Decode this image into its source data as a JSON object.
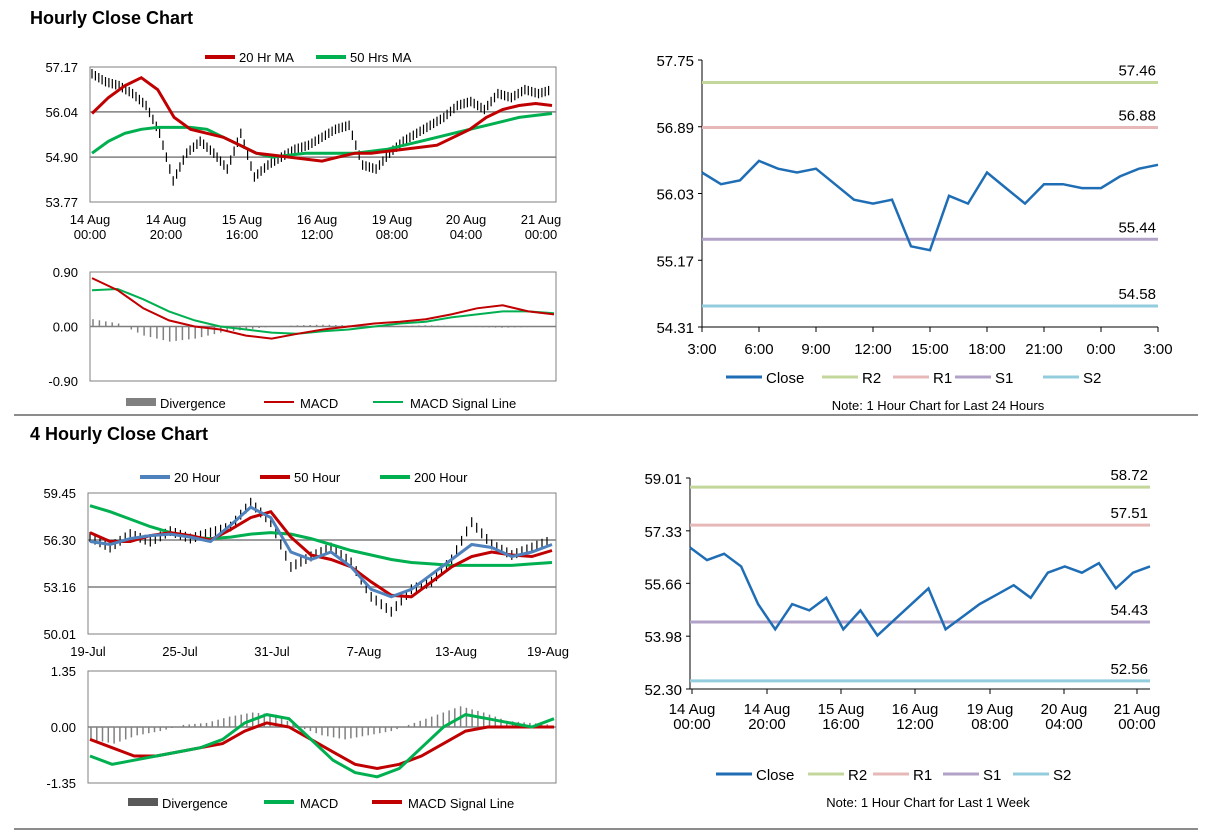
{
  "section1": {
    "title": "Hourly Close Chart"
  },
  "section2": {
    "title": "4 Hourly Close Chart"
  },
  "colors": {
    "ma_red": "#c00000",
    "ma_green": "#00b050",
    "ma_blue": "#4f81bd",
    "close": "#1f6eb5",
    "r2": "#c4d79b",
    "r1": "#e6b9b8",
    "s1": "#b2a2c7",
    "s2": "#93cddd",
    "divergence": "#808080",
    "gridline": "#7f7f7f"
  },
  "chart_data": [
    {
      "id": "hourly-price",
      "type": "line",
      "title": "",
      "tick_labels": [
        "14 Aug\n00:00",
        "14 Aug\n20:00",
        "15 Aug\n16:00",
        "16 Aug\n12:00",
        "19 Aug\n08:00",
        "20 Aug\n04:00",
        "21 Aug\n00:00"
      ],
      "y_ticks": [
        "57.17",
        "56.04",
        "54.90",
        "53.77"
      ],
      "ylim": [
        53.77,
        57.17
      ],
      "series": [
        {
          "name": "20 Hr MA",
          "values": [
            56.0,
            56.4,
            56.7,
            56.9,
            56.6,
            55.9,
            55.6,
            55.5,
            55.4,
            55.2,
            55.0,
            54.95,
            54.9,
            54.85,
            54.8,
            54.9,
            55.0,
            55.0,
            55.05,
            55.1,
            55.15,
            55.2,
            55.4,
            55.6,
            55.9,
            56.1,
            56.2,
            56.25,
            56.2
          ]
        },
        {
          "name": "50 Hrs MA",
          "values": [
            55.0,
            55.3,
            55.5,
            55.6,
            55.65,
            55.65,
            55.65,
            55.6,
            55.4,
            55.2,
            55.0,
            54.9,
            54.95,
            55.0,
            55.0,
            55.0,
            55.0,
            55.05,
            55.1,
            55.2,
            55.3,
            55.4,
            55.5,
            55.6,
            55.7,
            55.8,
            55.9,
            55.95,
            56.0
          ]
        }
      ],
      "close_values": [
        57.0,
        56.8,
        56.7,
        56.5,
        56.2,
        55.5,
        54.3,
        55.0,
        55.3,
        55.0,
        54.6,
        55.5,
        54.4,
        54.7,
        54.9,
        55.1,
        55.2,
        55.4,
        55.6,
        55.7,
        54.7,
        54.6,
        55.0,
        55.3,
        55.5,
        55.7,
        55.9,
        56.2,
        56.3,
        56.1,
        56.5,
        56.4,
        56.6,
        56.5,
        56.6
      ]
    },
    {
      "id": "hourly-macd",
      "type": "line",
      "y_ticks": [
        "0.90",
        "0.00",
        "-0.90"
      ],
      "ylim": [
        -0.9,
        0.9
      ],
      "series": [
        {
          "name": "Divergence",
          "values": [
            0.12,
            0.05,
            -0.15,
            -0.25,
            -0.2,
            -0.1,
            -0.05,
            0.0,
            0.02,
            0.03,
            0.02,
            0.0,
            0.01,
            0.02,
            0.01,
            -0.01,
            -0.02,
            -0.01,
            0.0
          ]
        },
        {
          "name": "MACD",
          "values": [
            0.8,
            0.6,
            0.3,
            0.1,
            0.0,
            -0.05,
            -0.15,
            -0.2,
            -0.12,
            -0.05,
            0.0,
            0.05,
            0.08,
            0.12,
            0.2,
            0.3,
            0.35,
            0.25,
            0.2
          ]
        },
        {
          "name": "MACD Signal Line",
          "values": [
            0.6,
            0.62,
            0.45,
            0.25,
            0.1,
            0.0,
            -0.05,
            -0.1,
            -0.12,
            -0.08,
            -0.05,
            0.0,
            0.05,
            0.08,
            0.15,
            0.2,
            0.25,
            0.25,
            0.22
          ]
        }
      ]
    },
    {
      "id": "hourly-levels",
      "type": "line",
      "x_labels": [
        "3:00",
        "6:00",
        "9:00",
        "12:00",
        "15:00",
        "18:00",
        "21:00",
        "0:00",
        "3:00"
      ],
      "y_ticks": [
        "57.75",
        "56.89",
        "56.03",
        "55.17",
        "54.31"
      ],
      "ylim": [
        54.31,
        57.75
      ],
      "series": [
        {
          "name": "Close",
          "values": [
            56.3,
            56.15,
            56.2,
            56.45,
            56.35,
            56.3,
            56.35,
            56.15,
            55.95,
            55.9,
            55.95,
            55.35,
            55.3,
            56.0,
            55.9,
            56.3,
            56.1,
            55.9,
            56.15,
            56.15,
            56.1,
            56.1,
            56.25,
            56.35,
            56.4
          ]
        },
        {
          "name": "R2",
          "level": 57.46,
          "label": "57.46"
        },
        {
          "name": "R1",
          "level": 56.88,
          "label": "56.88"
        },
        {
          "name": "S1",
          "level": 55.44,
          "label": "55.44"
        },
        {
          "name": "S2",
          "level": 54.58,
          "label": "54.58"
        }
      ],
      "note": "Note: 1 Hour Chart for Last 24 Hours"
    },
    {
      "id": "four-hourly-price",
      "type": "line",
      "x_labels": [
        "19-Jul",
        "25-Jul",
        "31-Jul",
        "7-Aug",
        "13-Aug",
        "19-Aug"
      ],
      "y_ticks": [
        "59.45",
        "56.30",
        "53.16",
        "50.01"
      ],
      "ylim": [
        50.01,
        59.45
      ],
      "series": [
        {
          "name": "20 Hour",
          "values": [
            56.2,
            56.0,
            56.4,
            56.6,
            56.7,
            56.5,
            56.2,
            57.3,
            58.5,
            57.8,
            55.5,
            55.0,
            55.5,
            54.5,
            53.0,
            52.5,
            53.0,
            54.0,
            55.0,
            56.0,
            55.8,
            55.2,
            55.5,
            56.0
          ]
        },
        {
          "name": "50 Hour",
          "values": [
            56.8,
            56.2,
            56.2,
            56.6,
            56.8,
            56.6,
            56.3,
            57.0,
            57.8,
            58.2,
            56.5,
            55.3,
            55.0,
            54.5,
            53.5,
            52.6,
            52.5,
            53.5,
            54.5,
            55.2,
            55.5,
            55.3,
            55.2,
            55.6
          ]
        },
        {
          "name": "200 Hour",
          "values": [
            58.6,
            58.2,
            57.7,
            57.2,
            56.8,
            56.5,
            56.4,
            56.5,
            56.7,
            56.8,
            56.7,
            56.4,
            56.0,
            55.6,
            55.3,
            55.0,
            54.8,
            54.7,
            54.6,
            54.6,
            54.6,
            54.6,
            54.7,
            54.8
          ]
        }
      ],
      "close_values": [
        56.5,
        55.8,
        56.7,
        56.2,
        56.9,
        56.4,
        56.8,
        57.2,
        58.8,
        57.5,
        54.5,
        55.2,
        55.8,
        54.8,
        52.5,
        51.5,
        53.0,
        53.5,
        55.0,
        57.5,
        56.0,
        55.3,
        55.8,
        56.3
      ]
    },
    {
      "id": "four-hourly-macd",
      "type": "line",
      "y_ticks": [
        "1.35",
        "0.00",
        "-1.35"
      ],
      "ylim": [
        -1.35,
        1.35
      ],
      "series": [
        {
          "name": "Divergence",
          "values": [
            -0.3,
            -0.4,
            -0.2,
            -0.1,
            0.05,
            0.1,
            0.25,
            0.35,
            0.3,
            0.0,
            -0.2,
            -0.3,
            -0.2,
            -0.1,
            0.1,
            0.3,
            0.5,
            0.35,
            0.15,
            0.1,
            0.05
          ]
        },
        {
          "name": "MACD",
          "values": [
            -0.7,
            -0.9,
            -0.8,
            -0.7,
            -0.6,
            -0.5,
            -0.3,
            0.1,
            0.3,
            0.2,
            -0.3,
            -0.8,
            -1.1,
            -1.2,
            -1.0,
            -0.5,
            0.0,
            0.3,
            0.2,
            0.1,
            0.0,
            0.2
          ]
        },
        {
          "name": "MACD Signal Line",
          "values": [
            -0.3,
            -0.5,
            -0.7,
            -0.7,
            -0.6,
            -0.5,
            -0.4,
            -0.1,
            0.1,
            0.0,
            -0.3,
            -0.6,
            -0.9,
            -1.0,
            -0.9,
            -0.7,
            -0.4,
            -0.1,
            0.0,
            0.0,
            0.0,
            0.0
          ]
        }
      ]
    },
    {
      "id": "four-hourly-levels",
      "type": "line",
      "tick_labels": [
        "14 Aug\n00:00",
        "14 Aug\n20:00",
        "15 Aug\n16:00",
        "16 Aug\n12:00",
        "19 Aug\n08:00",
        "20 Aug\n04:00",
        "21 Aug\n00:00"
      ],
      "y_ticks": [
        "59.01",
        "57.33",
        "55.66",
        "53.98",
        "52.30"
      ],
      "ylim": [
        52.3,
        59.01
      ],
      "series": [
        {
          "name": "Close",
          "values": [
            56.8,
            56.4,
            56.6,
            56.2,
            55.0,
            54.2,
            55.0,
            54.8,
            55.2,
            54.2,
            54.8,
            54.0,
            54.5,
            55.0,
            55.5,
            54.2,
            54.6,
            55.0,
            55.3,
            55.6,
            55.2,
            56.0,
            56.2,
            56.0,
            56.3,
            55.5,
            56.0,
            56.2
          ]
        },
        {
          "name": "R2",
          "level": 58.72,
          "label": "58.72"
        },
        {
          "name": "R1",
          "level": 57.51,
          "label": "57.51"
        },
        {
          "name": "S1",
          "level": 54.43,
          "label": "54.43"
        },
        {
          "name": "S2",
          "level": 52.56,
          "label": "52.56"
        }
      ],
      "note": "Note: 1 Hour Chart for Last 1 Week"
    }
  ]
}
